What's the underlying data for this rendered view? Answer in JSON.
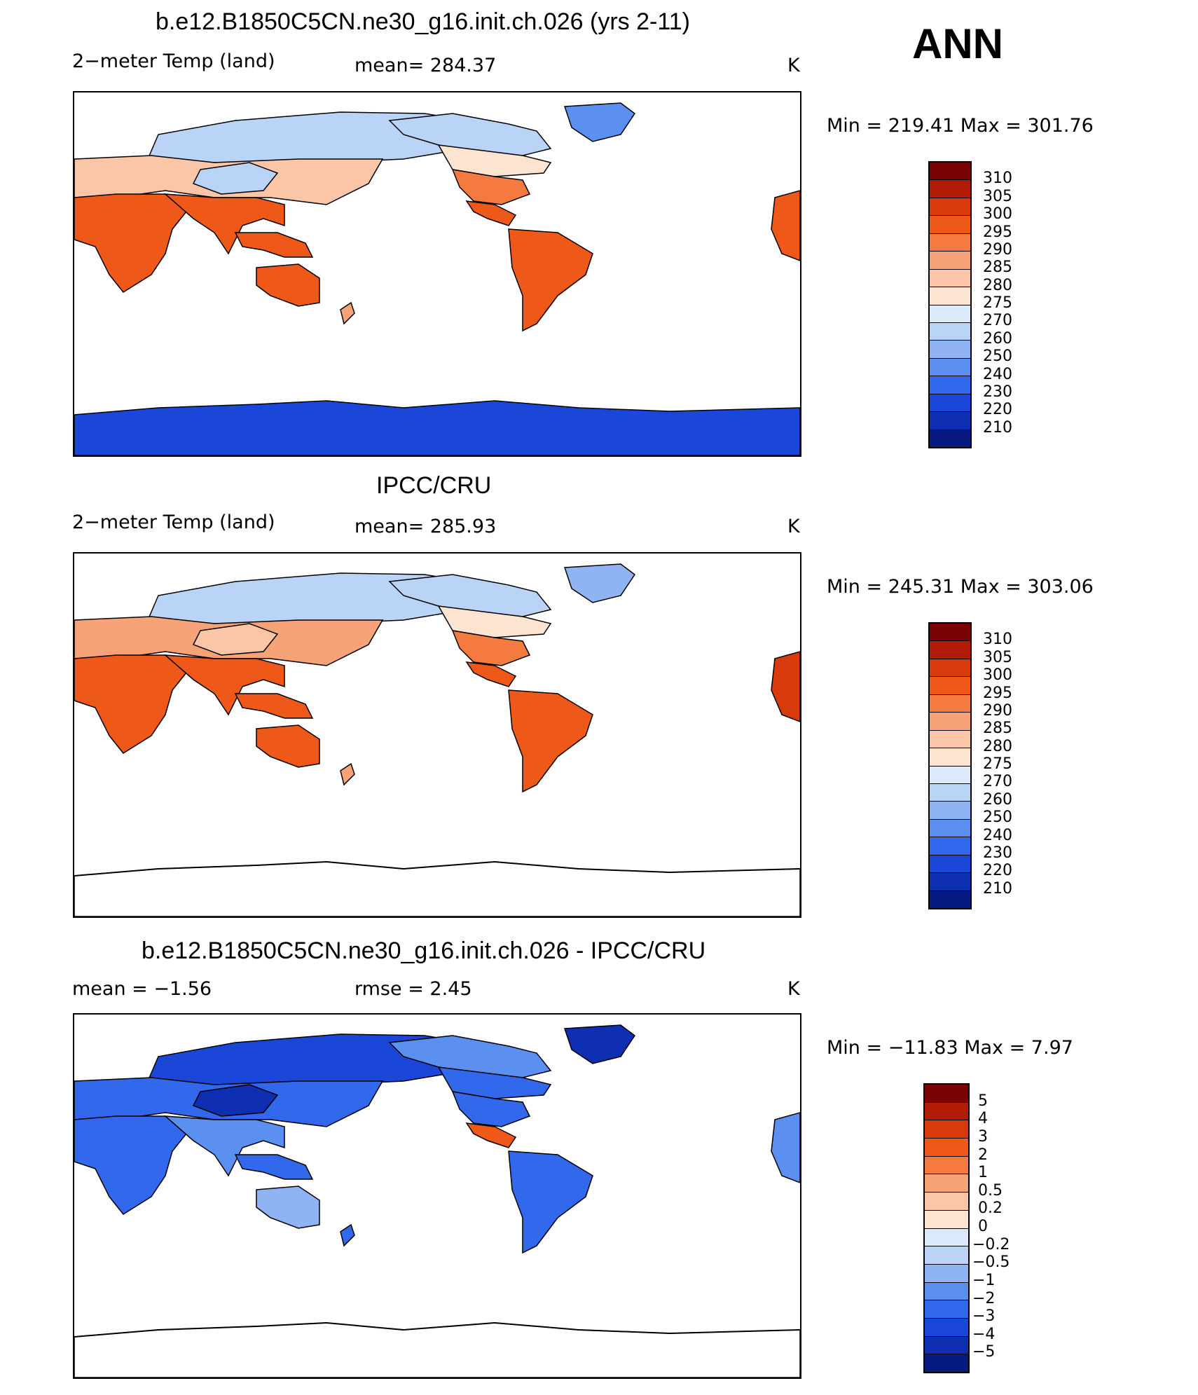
{
  "season": "ANN",
  "panels": [
    {
      "title": "b.e12.B1850C5CN.ne30_g16.init.ch.026 (yrs 2-11)",
      "left_label": "2−meter Temp  (land)",
      "mid_label": "mean=  284.37",
      "unit": "K",
      "minmax": "Min  =  219.41  Max  =  301.76",
      "colorbar": {
        "labels": [
          "310",
          "305",
          "300",
          "295",
          "290",
          "285",
          "280",
          "275",
          "270",
          "260",
          "250",
          "240",
          "230",
          "220",
          "210"
        ],
        "colors": [
          "#7a0403",
          "#b21c06",
          "#d83a0b",
          "#ee5818",
          "#f57a40",
          "#f8a278",
          "#fbc6a8",
          "#fde4d0",
          "#dcebfb",
          "#b9d4f7",
          "#8fb3f3",
          "#5b8ff0",
          "#3168ec",
          "#1a47d8",
          "#0e2fb2",
          "#061a82"
        ]
      }
    },
    {
      "title": "IPCC/CRU",
      "left_label": "2−meter Temp  (land)",
      "mid_label": "mean=  285.93",
      "unit": "K",
      "minmax": "Min  =  245.31  Max  =  303.06",
      "colorbar": {
        "labels": [
          "310",
          "305",
          "300",
          "295",
          "290",
          "285",
          "280",
          "275",
          "270",
          "260",
          "250",
          "240",
          "230",
          "220",
          "210"
        ],
        "colors": [
          "#7a0403",
          "#b21c06",
          "#d83a0b",
          "#ee5818",
          "#f57a40",
          "#f8a278",
          "#fbc6a8",
          "#fde4d0",
          "#dcebfb",
          "#b9d4f7",
          "#8fb3f3",
          "#5b8ff0",
          "#3168ec",
          "#1a47d8",
          "#0e2fb2",
          "#061a82"
        ]
      }
    },
    {
      "title": "b.e12.B1850C5CN.ne30_g16.init.ch.026 - IPCC/CRU",
      "left_label": "mean =    −1.56",
      "mid_label": "rmse =     2.45",
      "unit": "K",
      "minmax": "Min  =  −11.83  Max  =     7.97",
      "colorbar": {
        "labels": [
          "5",
          "4",
          "3",
          "2",
          "1",
          "0.5",
          "0.2",
          "0",
          "−0.2",
          "−0.5",
          "−1",
          "−2",
          "−3",
          "−4",
          "−5"
        ],
        "colors": [
          "#7a0403",
          "#b21c06",
          "#d83a0b",
          "#ee5818",
          "#f57a40",
          "#f8a278",
          "#fbc6a8",
          "#fde4d0",
          "#dcebfb",
          "#b9d4f7",
          "#8fb3f3",
          "#5b8ff0",
          "#3168ec",
          "#1a47d8",
          "#0e2fb2",
          "#061a82"
        ]
      }
    }
  ],
  "map_fills": {
    "model": {
      "eurasia_north": "#b9d4f7",
      "eurasia_mid": "#fbc6a8",
      "tibet": "#b9d4f7",
      "africa": "#ee5818",
      "south_asia": "#ee5818",
      "maritime": "#ee5818",
      "australia": "#ee5818",
      "north_america_north": "#b9d4f7",
      "north_america_mid": "#fde4d0",
      "north_america_south": "#f57a40",
      "central_america": "#ee5818",
      "south_america": "#ee5818",
      "greenland": "#5b8ff0",
      "antarctica": "#1a47d8",
      "west_africa_edge": "#ee5818",
      "new_zealand": "#f8a278"
    },
    "obs": {
      "eurasia_north": "#b9d4f7",
      "eurasia_mid": "#f8a278",
      "tibet": "#fbc6a8",
      "africa": "#ee5818",
      "south_asia": "#ee5818",
      "maritime": "#ee5818",
      "australia": "#ee5818",
      "north_america_north": "#b9d4f7",
      "north_america_mid": "#fde4d0",
      "north_america_south": "#f57a40",
      "central_america": "#ee5818",
      "south_america": "#ee5818",
      "greenland": "#8fb3f3",
      "antarctica": "#ffffff",
      "west_africa_edge": "#d83a0b",
      "new_zealand": "#f8a278"
    },
    "diff": {
      "eurasia_north": "#1a47d8",
      "eurasia_mid": "#3168ec",
      "tibet": "#0e2fb2",
      "africa": "#3168ec",
      "south_asia": "#5b8ff0",
      "maritime": "#3168ec",
      "australia": "#8fb3f3",
      "north_america_north": "#5b8ff0",
      "north_america_mid": "#3168ec",
      "north_america_south": "#3168ec",
      "central_america": "#ee5818",
      "south_america": "#3168ec",
      "greenland": "#0e2fb2",
      "antarctica": "#ffffff",
      "west_africa_edge": "#5b8ff0",
      "new_zealand": "#3168ec"
    }
  }
}
